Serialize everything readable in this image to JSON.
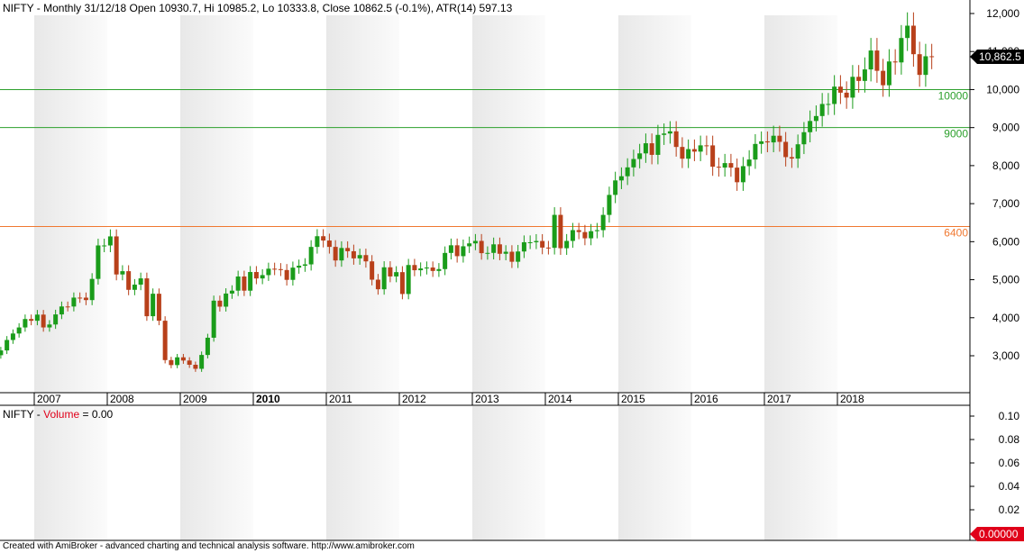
{
  "header": {
    "title_text": "NIFTY - Monthly 31/12/18 Open 10930.7, Hi 10985.2, Lo 10333.8, Close 10862.5 (-0.1%), ATR(14) 597.13"
  },
  "volume_pane": {
    "label_prefix": "NIFTY - ",
    "label_series": "Volume",
    "label_value": " = 0.00",
    "ticks": [
      "0.10",
      "0.08",
      "0.06",
      "0.04",
      "0.02"
    ],
    "last_value_badge": "0.00000"
  },
  "price_pane": {
    "y_ticks": [
      "12,000",
      "11,000",
      "10,000",
      "9,000",
      "8,000",
      "7,000",
      "6,000",
      "5,000",
      "4,000",
      "3,000"
    ],
    "last_value_badge": "10,862.5",
    "year_labels": [
      "2007",
      "2008",
      "2009",
      "2010",
      "2011",
      "2012",
      "2013",
      "2014",
      "2015",
      "2016",
      "2017",
      "2018"
    ]
  },
  "footer": {
    "text": "Created with AmiBroker - advanced charting and technical analysis software. http://www.amibroker.com"
  },
  "colors": {
    "up": "#1a9c1a",
    "down": "#b8401a",
    "band": "#f0f0f0",
    "line_green": "#2ca02c",
    "line_orange": "#f07830",
    "badge_bg": "#000000",
    "volume_badge_bg": "#e0001a"
  },
  "chart_data": {
    "type": "candlestick",
    "title": "NIFTY - Monthly",
    "ylim": [
      2100,
      12300
    ],
    "horizontal_lines": [
      {
        "label": "10000",
        "value": 10000,
        "color": "#2ca02c"
      },
      {
        "label": "9000",
        "value": 9000,
        "color": "#2ca02c"
      },
      {
        "label": "6400",
        "value": 6400,
        "color": "#f07830"
      }
    ],
    "start": "2006-07",
    "closes": [
      3140,
      3415,
      3585,
      3744,
      3966,
      3920,
      4082,
      3745,
      3822,
      4087,
      4296,
      4295,
      4529,
      4528,
      4464,
      5021,
      5901,
      5901,
      6139,
      5138,
      5224,
      4734,
      4870,
      5035,
      4040,
      4631,
      3921,
      2886,
      2755,
      2959,
      2875,
      2763,
      2657,
      3021,
      3474,
      4449,
      4291,
      4636,
      4712,
      5084,
      4712,
      5202,
      5033,
      5121,
      5289,
      5278,
      5254,
      4996,
      5317,
      5368,
      5403,
      5862,
      6144,
      6030,
      5863,
      5506,
      5834,
      5749,
      5561,
      5647,
      5482,
      5001,
      4749,
      5326,
      5086,
      5199,
      4624,
      5386,
      5249,
      5296,
      5320,
      5230,
      5279,
      5704,
      5905,
      5619,
      5879,
      5955,
      6020,
      5698,
      5705,
      5930,
      5682,
      5735,
      5472,
      5742,
      5985,
      5985,
      6018,
      5845,
      5838,
      6705,
      5828,
      6020,
      6304,
      6253,
      6089,
      6276,
      6303,
      6704,
      7230,
      7611,
      7721,
      7954,
      8174,
      8322,
      8588,
      8283,
      8808,
      8844,
      8902,
      8491,
      8182,
      8434,
      8368,
      8533,
      8532,
      7971,
      7949,
      8066,
      7947,
      7563,
      7986,
      8160,
      8570,
      8639,
      8611,
      8786,
      8625,
      8224,
      8186,
      8561,
      8879,
      9174,
      9304,
      9621,
      9621,
      10077,
      9918,
      9788,
      10335,
      10227,
      10530,
      11027,
      10493,
      10114,
      10739,
      10714,
      11356,
      11680,
      10930,
      10386,
      10876,
      10862
    ],
    "x_tick_labels": [
      "2007",
      "2008",
      "2009",
      "2010",
      "2011",
      "2012",
      "2013",
      "2014",
      "2015",
      "2016",
      "2017",
      "2018"
    ]
  }
}
